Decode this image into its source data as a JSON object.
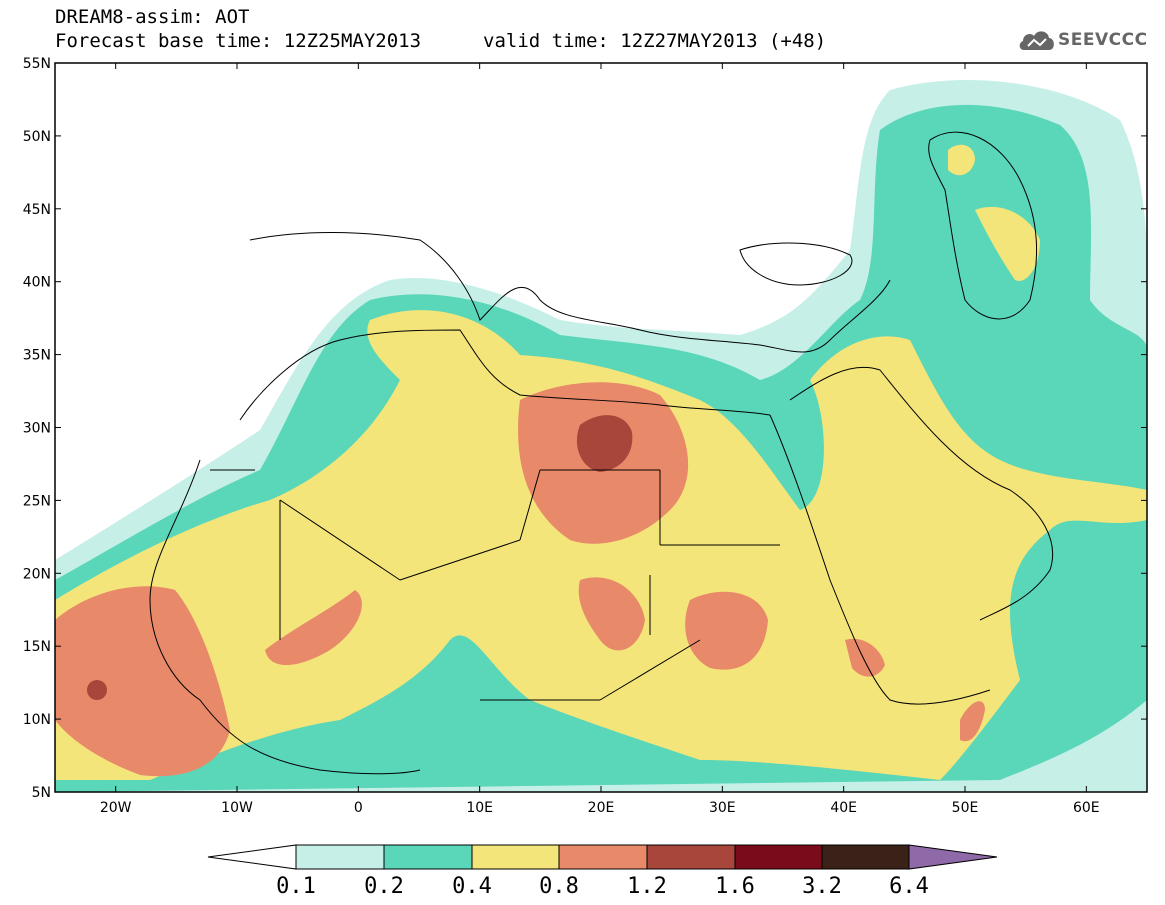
{
  "header": {
    "title": "DREAM8-assim: AOT",
    "forecast_base": "Forecast base time: 12Z25MAY2013",
    "valid": "valid time: 12Z27MAY2013 (+48)"
  },
  "logo": {
    "text": "SEEVCCC",
    "icon": "cloud-logo-icon"
  },
  "map": {
    "lon_range": [
      -25,
      65
    ],
    "lat_range": [
      5,
      55
    ],
    "lat_labels": [
      "55N",
      "50N",
      "45N",
      "40N",
      "35N",
      "30N",
      "25N",
      "20N",
      "15N",
      "10N",
      "5N"
    ],
    "lon_labels": [
      "20W",
      "10W",
      "0",
      "10E",
      "20E",
      "30E",
      "40E",
      "50E",
      "60E"
    ]
  },
  "colorbar": {
    "levels": [
      "0.1",
      "0.2",
      "0.4",
      "0.8",
      "1.2",
      "1.6",
      "3.2",
      "6.4"
    ],
    "colors": {
      "under": "#ffffff",
      "c1": "#c6efe8",
      "c2": "#5ad6b8",
      "c3": "#f4e57a",
      "c4": "#e8896a",
      "c5": "#a8463c",
      "c6": "#7a0b1a",
      "c7": "#3b2218",
      "over": "#8e6aa8"
    }
  }
}
